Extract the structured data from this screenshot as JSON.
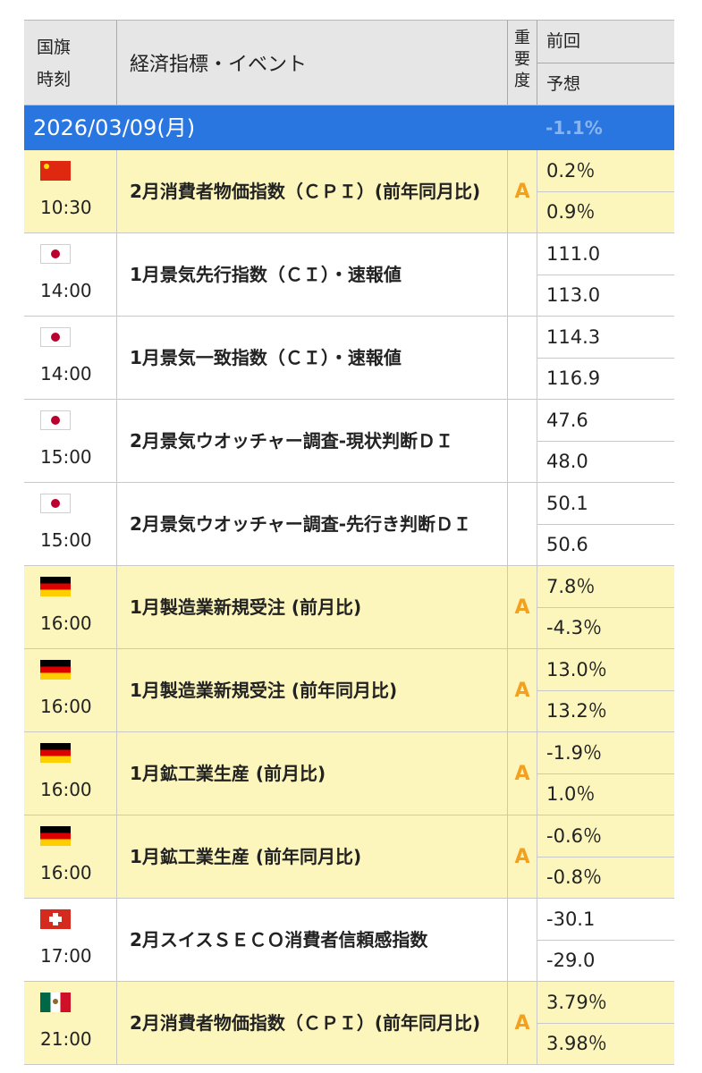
{
  "header": {
    "flag_time": [
      "国旗",
      "時刻"
    ],
    "event": "経済指標・イベント",
    "importance": [
      "重",
      "要",
      "度"
    ],
    "previous": "前回",
    "forecast": "予想"
  },
  "date_bar": {
    "date": "2026/03/09(月)",
    "ghost_value": "-1.1%"
  },
  "events": [
    {
      "flag": "china",
      "time": "10:30",
      "name": "2月消費者物価指数（ＣＰＩ）(前年同月比)",
      "importance": "A",
      "previous": "0.2％",
      "forecast": "0.9％",
      "highlight": true
    },
    {
      "flag": "japan",
      "time": "14:00",
      "name": "1月景気先行指数（ＣＩ）・速報値",
      "importance": "",
      "previous": "111.0",
      "forecast": "113.0",
      "highlight": false
    },
    {
      "flag": "japan",
      "time": "14:00",
      "name": "1月景気一致指数（ＣＩ）・速報値",
      "importance": "",
      "previous": "114.3",
      "forecast": "116.9",
      "highlight": false
    },
    {
      "flag": "japan",
      "time": "15:00",
      "name": "2月景気ウオッチャー調査-現状判断ＤＩ",
      "importance": "",
      "previous": "47.6",
      "forecast": "48.0",
      "highlight": false
    },
    {
      "flag": "japan",
      "time": "15:00",
      "name": "2月景気ウオッチャー調査-先行き判断ＤＩ",
      "importance": "",
      "previous": "50.1",
      "forecast": "50.6",
      "highlight": false
    },
    {
      "flag": "germany",
      "time": "16:00",
      "name": "1月製造業新規受注 (前月比)",
      "importance": "A",
      "previous": "7.8％",
      "forecast": "-4.3％",
      "highlight": true
    },
    {
      "flag": "germany",
      "time": "16:00",
      "name": "1月製造業新規受注 (前年同月比)",
      "importance": "A",
      "previous": "13.0％",
      "forecast": "13.2％",
      "highlight": true
    },
    {
      "flag": "germany",
      "time": "16:00",
      "name": "1月鉱工業生産 (前月比)",
      "importance": "A",
      "previous": "-1.9％",
      "forecast": "1.0％",
      "highlight": true
    },
    {
      "flag": "germany",
      "time": "16:00",
      "name": "1月鉱工業生産 (前年同月比)",
      "importance": "A",
      "previous": "-0.6％",
      "forecast": "-0.8％",
      "highlight": true
    },
    {
      "flag": "switzerland",
      "time": "17:00",
      "name": "2月スイスＳＥＣＯ消費者信頼感指数",
      "importance": "",
      "previous": "-30.1",
      "forecast": "-29.0",
      "highlight": false
    },
    {
      "flag": "mexico",
      "time": "21:00",
      "name": "2月消費者物価指数（ＣＰＩ）(前年同月比)",
      "importance": "A",
      "previous": "3.79％",
      "forecast": "3.98％",
      "highlight": true
    }
  ]
}
